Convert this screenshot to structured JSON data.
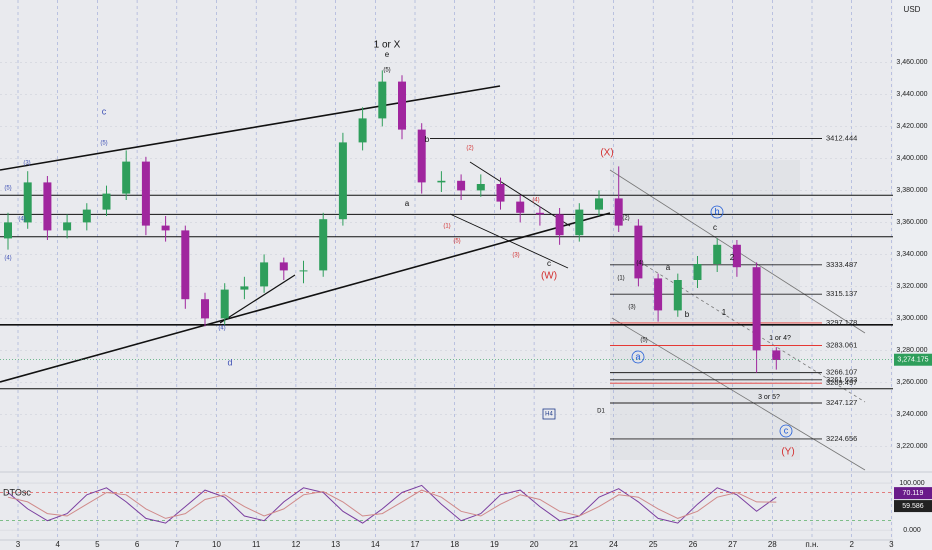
{
  "chart_data": {
    "type": "candlestick",
    "currency": "USD",
    "x_labels": [
      "3",
      "4",
      "5",
      "6",
      "7",
      "10",
      "11",
      "12",
      "13",
      "14",
      "17",
      "18",
      "19",
      "20",
      "21",
      "24",
      "25",
      "26",
      "27",
      "28",
      "п.н.",
      "2",
      "3"
    ],
    "open": [
      3350,
      3360,
      3385,
      3355,
      3360,
      3368,
      3378,
      3398,
      3358,
      3355,
      3312,
      3300,
      3318,
      3320,
      3335,
      3330,
      3330,
      3362,
      3410,
      3425,
      3448,
      3418,
      3385,
      3386,
      3380,
      3384,
      3373,
      3366,
      3365,
      3352,
      3368,
      3375,
      3358,
      3325,
      3305,
      3324,
      3334,
      3346,
      3332,
      3280
    ],
    "high": [
      3366,
      3392,
      3389,
      3365,
      3372,
      3383,
      3405,
      3401,
      3364,
      3358,
      3316,
      3322,
      3326,
      3340,
      3338,
      3336,
      3366,
      3416,
      3432,
      3455,
      3452,
      3422,
      3392,
      3390,
      3390,
      3388,
      3377,
      3370,
      3369,
      3372,
      3380,
      3395,
      3362,
      3328,
      3328,
      3339,
      3350,
      3349,
      3335,
      3282
    ],
    "low": [
      3343,
      3356,
      3349,
      3350,
      3355,
      3364,
      3374,
      3352,
      3348,
      3306,
      3295,
      3296,
      3312,
      3316,
      3324,
      3322,
      3326,
      3358,
      3405,
      3420,
      3412,
      3378,
      3379,
      3374,
      3376,
      3368,
      3360,
      3358,
      3346,
      3348,
      3364,
      3354,
      3320,
      3298,
      3301,
      3319,
      3329,
      3326,
      3266,
      3268
    ],
    "close": [
      3360,
      3385,
      3355,
      3360,
      3368,
      3378,
      3398,
      3358,
      3355,
      3312,
      3300,
      3318,
      3320,
      3335,
      3330,
      3330,
      3362,
      3410,
      3425,
      3448,
      3418,
      3385,
      3386,
      3380,
      3384,
      3373,
      3366,
      3365,
      3352,
      3368,
      3375,
      3358,
      3325,
      3305,
      3324,
      3334,
      3346,
      3332,
      3280,
      3274
    ],
    "up_color": "#2e9e5b",
    "down_color": "#a0269e",
    "ylim": [
      3204,
      3499
    ],
    "yticks": [
      {
        "value": 3220,
        "label": "3,220.000"
      },
      {
        "value": 3240,
        "label": "3,240.000"
      },
      {
        "value": 3260,
        "label": "3,260.000"
      },
      {
        "value": 3280,
        "label": "3,280.000"
      },
      {
        "value": 3300,
        "label": "3,300.000"
      },
      {
        "value": 3320,
        "label": "3,320.000"
      },
      {
        "value": 3340,
        "label": "3,340.000"
      },
      {
        "value": 3360,
        "label": "3,360.000"
      },
      {
        "value": 3380,
        "label": "3,380.000"
      },
      {
        "value": 3400,
        "label": "3,400.000"
      },
      {
        "value": 3420,
        "label": "3,420.000"
      },
      {
        "value": 3440,
        "label": "3,440.000"
      },
      {
        "value": 3460,
        "label": "3,460.000"
      }
    ],
    "grid": true,
    "current_price": {
      "value": 3274.175,
      "label": "3,274.175"
    },
    "levels": [
      {
        "value": 3412.444,
        "color": "#222222"
      },
      {
        "value": 3333.487,
        "color": "#222222"
      },
      {
        "value": 3315.137,
        "color": "#222222"
      },
      {
        "value": 3297.178,
        "color": "#e53935"
      },
      {
        "value": 3283.061,
        "color": "#e53935"
      },
      {
        "value": 3266.107,
        "color": "#222222"
      },
      {
        "value": 3261.633,
        "color": "#222222"
      },
      {
        "value": 3259.497,
        "color": "#e53935"
      },
      {
        "value": 3247.127,
        "color": "#222222"
      },
      {
        "value": 3224.656,
        "color": "#222222"
      }
    ],
    "lines": [
      3377,
      3365,
      3351,
      3296,
      3256
    ],
    "annotations": [
      "1 or X",
      "e",
      "(5)",
      "b",
      "a",
      "(2)",
      "(1)",
      "(5)",
      "(3)",
      "(4)",
      "c",
      "(W)",
      "(X)",
      "(2)",
      "(4)",
      "(1)",
      "(3)",
      "(5)",
      "a",
      "b",
      "c",
      "2",
      "1",
      "1 or 4?",
      "3 or 5?",
      "(Y)",
      "d",
      "c",
      "(5)",
      "(3)",
      "(5)",
      "(4)",
      "(4)",
      "(4)",
      "H4",
      "D1",
      "a",
      "b",
      "c"
    ],
    "oscillator": {
      "name": "DTOsc",
      "ylim": [
        -21,
        115
      ],
      "yticks": [
        {
          "value": 100,
          "label": "100.000"
        },
        {
          "value": 0,
          "label": "0.000"
        }
      ],
      "levels": [
        80,
        20
      ],
      "series": [
        {
          "color": "#7b3fa0",
          "values": [
            80,
            45,
            20,
            35,
            75,
            90,
            60,
            25,
            15,
            50,
            85,
            70,
            30,
            20,
            60,
            90,
            80,
            40,
            15,
            45,
            80,
            95,
            55,
            20,
            35,
            75,
            85,
            50,
            20,
            30,
            70,
            88,
            60,
            25,
            15,
            55,
            90,
            75,
            40,
            70.119
          ]
        },
        {
          "color": "#d08a8a",
          "values": [
            70,
            60,
            35,
            30,
            55,
            80,
            75,
            45,
            25,
            35,
            65,
            75,
            50,
            30,
            45,
            75,
            82,
            60,
            30,
            35,
            60,
            85,
            70,
            40,
            30,
            55,
            75,
            65,
            40,
            30,
            50,
            75,
            70,
            45,
            25,
            40,
            70,
            80,
            60,
            59.586
          ]
        }
      ]
    }
  }
}
